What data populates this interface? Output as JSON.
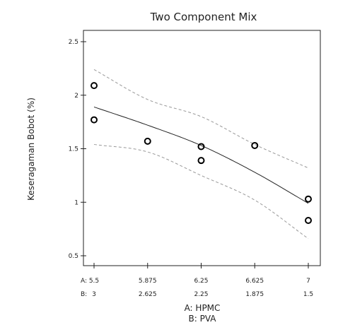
{
  "chart_data": {
    "type": "scatter",
    "title": "Two Component Mix",
    "ylabel": "Keseragaman Bobot (%)",
    "xlabel_a": "A: HPMC",
    "xlabel_b": "B: PVA",
    "xlim": [
      5.5,
      7
    ],
    "ylim": [
      0.5,
      2.5
    ],
    "grid": false,
    "y_ticks": [
      "0.5",
      "1",
      "1.5",
      "2",
      "2.5"
    ],
    "x_ticks": [
      {
        "a": "5.5",
        "b": "3",
        "x": 5.5
      },
      {
        "a": "5.875",
        "b": "2.625",
        "x": 5.875
      },
      {
        "a": "6.25",
        "b": "2.25",
        "x": 6.25
      },
      {
        "a": "6.625",
        "b": "1.875",
        "x": 6.625
      },
      {
        "a": "7",
        "b": "1.5",
        "x": 7
      }
    ],
    "tick_prefix_a": "A:",
    "tick_prefix_b": "B:",
    "points": [
      {
        "x": 5.5,
        "y": 2.09
      },
      {
        "x": 5.5,
        "y": 1.77
      },
      {
        "x": 5.875,
        "y": 1.57
      },
      {
        "x": 6.25,
        "y": 1.52
      },
      {
        "x": 6.25,
        "y": 1.39
      },
      {
        "x": 6.625,
        "y": 1.53
      },
      {
        "x": 7,
        "y": 1.03
      },
      {
        "x": 7,
        "y": 0.83
      }
    ],
    "fit_line": {
      "x": [
        5.5,
        5.875,
        6.25,
        6.625,
        7
      ],
      "y": [
        1.89,
        1.72,
        1.53,
        1.28,
        0.99
      ]
    },
    "upper_band": {
      "x": [
        5.5,
        5.875,
        6.25,
        6.625,
        7
      ],
      "y": [
        2.24,
        1.96,
        1.8,
        1.54,
        1.32
      ]
    },
    "lower_band": {
      "x": [
        5.5,
        5.875,
        6.25,
        6.625,
        7
      ],
      "y": [
        1.54,
        1.47,
        1.25,
        1.02,
        0.66
      ]
    }
  }
}
